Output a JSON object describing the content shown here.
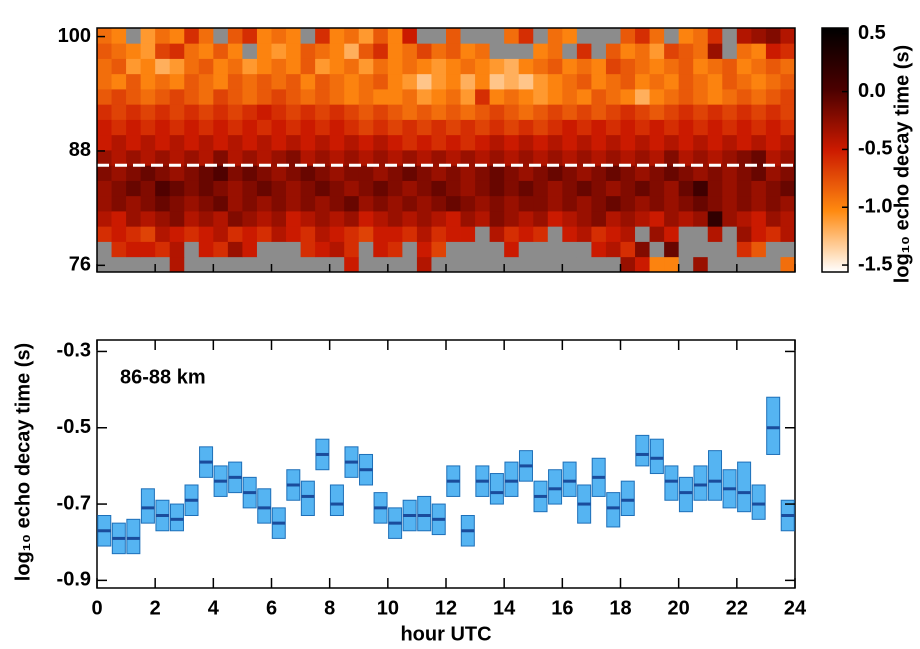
{
  "chart_data": [
    {
      "type": "heatmap",
      "x_edges": [
        0,
        0.5,
        1,
        1.5,
        2,
        2.5,
        3,
        3.5,
        4,
        4.5,
        5,
        5.5,
        6,
        6.5,
        7,
        7.5,
        8,
        8.5,
        9,
        9.5,
        10,
        10.5,
        11,
        11.5,
        12,
        12.5,
        13,
        13.5,
        14,
        14.5,
        15,
        15.5,
        16,
        16.5,
        17,
        17.5,
        18,
        18.5,
        19,
        19.5,
        20,
        20.5,
        21,
        21.5,
        22,
        22.5,
        23,
        23.5,
        24
      ],
      "y_edges": [
        75.3,
        76.9,
        78.5,
        80.1,
        81.7,
        83.3,
        84.9,
        86.5,
        88.1,
        89.7,
        91.3,
        92.9,
        94.5,
        96.1,
        97.7,
        99.3,
        100.9
      ],
      "xlim": [
        0,
        24
      ],
      "xticks": [
        0,
        2,
        4,
        6,
        8,
        10,
        12,
        14,
        16,
        18,
        20,
        22,
        24
      ],
      "ylim": [
        75.3,
        100.9
      ],
      "yticks": [
        76,
        88,
        100
      ],
      "hline": 86.5,
      "values": [
        [
          null,
          null,
          null,
          null,
          null,
          -0.4,
          null,
          null,
          null,
          null,
          null,
          null,
          null,
          null,
          null,
          null,
          null,
          -0.5,
          null,
          null,
          null,
          null,
          -0.4,
          null,
          null,
          null,
          null,
          null,
          null,
          null,
          null,
          null,
          null,
          null,
          null,
          null,
          -0.3,
          -0.5,
          -1.0,
          -1.0,
          null,
          -0.3,
          null,
          null,
          null,
          null,
          null,
          -0.9
        ],
        [
          null,
          -0.6,
          -0.5,
          -0.5,
          -0.6,
          -0.4,
          null,
          -0.5,
          -0.6,
          -0.3,
          -0.5,
          null,
          null,
          null,
          -0.6,
          -0.5,
          -0.4,
          -0.6,
          null,
          -0.5,
          -0.6,
          null,
          -0.5,
          -0.7,
          null,
          null,
          null,
          null,
          -0.5,
          null,
          null,
          null,
          null,
          null,
          -0.5,
          -0.4,
          -0.6,
          -0.2,
          null,
          -0.1,
          null,
          null,
          null,
          null,
          -0.6,
          -0.8,
          null,
          null
        ],
        [
          -0.6,
          -0.5,
          -0.6,
          -0.7,
          -0.4,
          -0.5,
          -0.6,
          -0.5,
          -0.4,
          -0.6,
          -0.5,
          -0.6,
          -0.4,
          -0.5,
          -0.6,
          -0.4,
          -0.5,
          -0.6,
          -0.7,
          -0.5,
          -0.5,
          -0.6,
          -0.4,
          -0.6,
          -0.5,
          -0.5,
          null,
          -0.4,
          -0.6,
          -0.5,
          -0.6,
          null,
          -0.5,
          -0.4,
          -0.6,
          -0.5,
          -0.4,
          null,
          -0.3,
          -0.5,
          null,
          null,
          -0.4,
          null,
          -0.3,
          -0.5,
          -0.6,
          -0.4
        ],
        [
          -0.4,
          -0.5,
          -0.3,
          -0.4,
          -0.3,
          -0.2,
          -0.4,
          -0.3,
          -0.4,
          -0.2,
          -0.3,
          -0.4,
          -0.3,
          -0.5,
          -0.4,
          -0.3,
          -0.4,
          -0.3,
          -0.5,
          -0.4,
          -0.3,
          -0.4,
          -0.3,
          -0.4,
          -0.5,
          -0.3,
          -0.4,
          -0.2,
          -0.3,
          -0.4,
          -0.3,
          -0.5,
          -0.4,
          -0.3,
          -0.2,
          -0.4,
          -0.3,
          -0.4,
          -0.5,
          -0.3,
          -0.4,
          -0.3,
          0.2,
          -0.3,
          -0.4,
          -0.5,
          -0.3,
          -0.4
        ],
        [
          -0.3,
          -0.2,
          -0.3,
          -0.2,
          -0.1,
          -0.2,
          -0.3,
          -0.2,
          -0.1,
          -0.3,
          -0.2,
          -0.3,
          -0.2,
          -0.3,
          -0.2,
          -0.3,
          -0.2,
          -0.1,
          -0.3,
          -0.2,
          -0.3,
          -0.2,
          -0.3,
          -0.2,
          -0.1,
          -0.2,
          -0.3,
          -0.2,
          -0.3,
          -0.2,
          -0.2,
          -0.3,
          -0.2,
          -0.3,
          -0.2,
          -0.1,
          -0.2,
          -0.3,
          -0.2,
          -0.3,
          -0.2,
          -0.1,
          -0.2,
          -0.3,
          -0.2,
          -0.3,
          -0.2,
          -0.3
        ],
        [
          -0.3,
          -0.2,
          -0.1,
          -0.2,
          0.0,
          -0.1,
          -0.2,
          -0.1,
          -0.2,
          -0.3,
          -0.2,
          -0.1,
          -0.2,
          -0.3,
          -0.2,
          -0.1,
          -0.2,
          -0.3,
          -0.2,
          -0.1,
          -0.2,
          -0.3,
          -0.2,
          -0.1,
          -0.2,
          -0.3,
          -0.2,
          -0.1,
          -0.2,
          -0.1,
          -0.2,
          -0.3,
          -0.2,
          -0.1,
          -0.2,
          -0.3,
          -0.2,
          -0.1,
          -0.2,
          -0.3,
          -0.1,
          0.1,
          -0.2,
          -0.3,
          -0.2,
          -0.3,
          -0.2,
          -0.1
        ],
        [
          -0.2,
          -0.3,
          -0.2,
          -0.1,
          -0.2,
          -0.3,
          -0.2,
          -0.1,
          0.0,
          -0.2,
          -0.1,
          -0.2,
          -0.3,
          -0.2,
          -0.1,
          -0.2,
          -0.3,
          -0.2,
          -0.2,
          -0.3,
          -0.2,
          -0.1,
          -0.2,
          -0.3,
          -0.2,
          -0.3,
          -0.2,
          -0.1,
          -0.2,
          -0.3,
          -0.2,
          -0.1,
          -0.2,
          -0.3,
          -0.2,
          -0.1,
          -0.2,
          -0.3,
          -0.2,
          -0.1,
          -0.2,
          -0.3,
          -0.2,
          -0.3,
          -0.2,
          -0.1,
          -0.3,
          -0.2
        ],
        [
          -0.3,
          -0.4,
          -0.3,
          -0.4,
          -0.3,
          -0.4,
          -0.3,
          -0.4,
          -0.2,
          -0.4,
          -0.3,
          -0.4,
          -0.3,
          -0.2,
          -0.4,
          -0.3,
          -0.4,
          -0.3,
          -0.4,
          -0.3,
          -0.4,
          -0.3,
          -0.4,
          -0.3,
          -0.4,
          -0.3,
          -0.4,
          -0.3,
          -0.4,
          -0.3,
          -0.4,
          -0.3,
          -0.4,
          -0.3,
          -0.4,
          -0.3,
          -0.4,
          -0.3,
          -0.4,
          -0.2,
          -0.4,
          -0.3,
          -0.4,
          -0.3,
          -0.2,
          -0.1,
          -0.4,
          -0.3
        ],
        [
          -0.5,
          -0.4,
          -0.5,
          -0.4,
          -0.5,
          -0.4,
          -0.5,
          -0.4,
          -0.5,
          -0.4,
          -0.5,
          -0.4,
          -0.5,
          -0.4,
          -0.5,
          -0.4,
          -0.5,
          -0.4,
          -0.5,
          -0.4,
          -0.5,
          -0.6,
          -0.5,
          -0.6,
          -0.5,
          -0.6,
          -0.5,
          -0.4,
          -0.5,
          -0.4,
          -0.5,
          -0.4,
          -0.5,
          -0.4,
          -0.5,
          -0.4,
          -0.5,
          -0.4,
          -0.5,
          -0.4,
          -0.5,
          -0.4,
          -0.5,
          -0.4,
          -0.5,
          -0.4,
          -0.5,
          -0.4
        ],
        [
          -0.5,
          -0.6,
          -0.5,
          -0.6,
          -0.5,
          -0.6,
          -0.5,
          -0.6,
          -0.5,
          -0.6,
          -0.5,
          -0.6,
          -0.5,
          -0.6,
          -0.5,
          -0.6,
          -0.5,
          -0.6,
          -0.7,
          -0.6,
          -0.7,
          -0.6,
          -0.7,
          -0.6,
          -0.7,
          -0.6,
          -0.7,
          -0.6,
          -0.7,
          -0.6,
          -0.7,
          -0.6,
          -0.5,
          -0.6,
          -0.5,
          -0.6,
          -0.5,
          -0.6,
          -0.5,
          -0.6,
          -0.5,
          -0.6,
          -0.5,
          -0.6,
          -0.5,
          -0.6,
          -0.5,
          -0.6
        ],
        [
          -0.6,
          -0.7,
          -0.6,
          -0.7,
          -0.6,
          -0.7,
          -0.6,
          -0.7,
          -0.6,
          -0.7,
          -0.6,
          -0.5,
          -0.6,
          -0.7,
          -0.6,
          -0.7,
          -0.6,
          -0.7,
          -0.8,
          -0.7,
          -0.8,
          -0.9,
          -0.8,
          -0.9,
          -0.8,
          -0.9,
          -0.8,
          -0.7,
          -0.8,
          -0.9,
          -0.8,
          -0.7,
          -0.8,
          -0.7,
          -0.8,
          -0.7,
          -0.6,
          -0.7,
          -0.8,
          -0.7,
          -0.6,
          -0.7,
          -0.6,
          -0.7,
          -0.6,
          -0.7,
          -0.6,
          -0.7
        ],
        [
          -0.8,
          -0.7,
          -0.8,
          -0.9,
          -0.8,
          -0.7,
          -0.8,
          -0.9,
          -0.7,
          -0.8,
          -0.9,
          -0.8,
          -0.7,
          -0.8,
          -0.9,
          -0.8,
          -0.9,
          -1.0,
          -0.9,
          -1.0,
          -1.0,
          -0.9,
          -1.1,
          -1.0,
          -0.9,
          -1.1,
          -0.6,
          -1.0,
          -0.9,
          -1.0,
          -1.1,
          -1.0,
          -0.9,
          -1.0,
          -0.8,
          -0.9,
          -1.0,
          -1.2,
          -1.0,
          -0.9,
          -0.8,
          -0.9,
          -1.0,
          -0.9,
          -0.8,
          -0.9,
          -0.8,
          -0.7
        ],
        [
          -0.9,
          -1.0,
          -0.8,
          -1.0,
          -0.9,
          -1.0,
          -0.8,
          -0.9,
          -1.0,
          -0.8,
          -0.9,
          -0.8,
          -0.9,
          -0.8,
          -1.0,
          -0.8,
          -0.9,
          -1.0,
          -0.9,
          -0.8,
          -1.0,
          -1.1,
          -1.3,
          -1.1,
          -1.0,
          -1.2,
          -1.0,
          -1.3,
          -1.2,
          -1.3,
          -1.1,
          -1.0,
          -0.9,
          -0.8,
          -1.0,
          -0.9,
          -0.8,
          -1.0,
          -0.9,
          -1.0,
          -0.8,
          -0.9,
          -1.0,
          -0.8,
          -0.9,
          -1.0,
          -0.9,
          -0.8
        ],
        [
          -0.9,
          -0.8,
          -1.1,
          -1.0,
          -1.2,
          -1.1,
          -0.9,
          -0.8,
          -1.0,
          -0.9,
          -1.1,
          -1.0,
          -0.9,
          -1.0,
          -0.8,
          -1.1,
          -1.0,
          -0.9,
          -1.1,
          -0.9,
          -1.0,
          -0.9,
          -1.0,
          -1.1,
          -1.0,
          -0.9,
          -1.0,
          -1.1,
          -1.2,
          -1.0,
          -0.9,
          -0.8,
          -1.0,
          -0.9,
          -1.0,
          -0.7,
          -0.8,
          -0.9,
          -1.0,
          -0.9,
          -0.8,
          -1.0,
          -0.9,
          -0.8,
          -1.0,
          -0.9,
          -0.8,
          -0.9
        ],
        [
          -0.8,
          -0.9,
          -1.0,
          -1.1,
          -0.7,
          -0.6,
          -0.9,
          -1.0,
          -0.8,
          -1.0,
          null,
          -1.0,
          -1.1,
          -1.0,
          -0.8,
          -0.9,
          -1.0,
          -1.2,
          -0.8,
          -0.6,
          -1.0,
          -0.9,
          -0.7,
          -0.9,
          -0.8,
          -1.0,
          -0.9,
          null,
          null,
          null,
          -1.0,
          -0.9,
          null,
          -0.6,
          null,
          -0.8,
          -1.0,
          -0.9,
          -1.1,
          -0.7,
          -0.8,
          -0.9,
          -0.3,
          null,
          -0.9,
          -1.0,
          -0.5,
          -0.6
        ],
        [
          -0.9,
          -1.0,
          null,
          -1.1,
          -0.9,
          -1.0,
          -0.6,
          -0.9,
          null,
          -0.8,
          -0.6,
          -1.0,
          -0.9,
          -1.0,
          null,
          -0.6,
          -1.0,
          -0.9,
          -1.1,
          -0.8,
          -1.0,
          -0.5,
          null,
          null,
          -0.8,
          null,
          null,
          null,
          -0.9,
          -0.6,
          null,
          -0.9,
          -1.0,
          null,
          null,
          null,
          -0.8,
          -0.6,
          -0.9,
          null,
          -1.0,
          -0.9,
          -0.6,
          null,
          -0.4,
          -0.3,
          -0.2,
          -0.4
        ]
      ],
      "colormap": [
        "#ffffff",
        "#ff8a10",
        "#cc1a00",
        "#4a0000",
        "#000000"
      ],
      "missing_color": "#8c8c8c",
      "clim": [
        -1.56,
        0.55
      ],
      "cticks": [
        -1.5,
        {
          "value": -1.0,
          "label": "-1.0"
        },
        -0.5,
        {
          "value": 0.0,
          "label": "0.0"
        },
        0.5
      ],
      "colorbar_label": "log₁₀ echo decay time (s)"
    },
    {
      "type": "box",
      "annotation": "86-88 km",
      "xlabel": "hour UTC",
      "ylabel": "log₁₀ echo decay time (s)",
      "xlim": [
        0,
        24
      ],
      "xticks": [
        0,
        2,
        4,
        6,
        8,
        10,
        12,
        14,
        16,
        18,
        20,
        22,
        24
      ],
      "ylim": [
        -0.92,
        -0.27
      ],
      "yticks": [
        -0.3,
        -0.5,
        -0.7,
        -0.9
      ],
      "color": "#55b4f2",
      "edge_color": "#1e6fb8",
      "median_color": "#1a4c9c",
      "x": [
        0.25,
        0.75,
        1.25,
        1.75,
        2.25,
        2.75,
        3.25,
        3.75,
        4.25,
        4.75,
        5.25,
        5.75,
        6.25,
        6.75,
        7.25,
        7.75,
        8.25,
        8.75,
        9.25,
        9.75,
        10.25,
        10.75,
        11.25,
        11.75,
        12.25,
        12.75,
        13.25,
        13.75,
        14.25,
        14.75,
        15.25,
        15.75,
        16.25,
        16.75,
        17.25,
        17.75,
        18.25,
        18.75,
        19.25,
        19.75,
        20.25,
        20.75,
        21.25,
        21.75,
        22.25,
        22.75,
        23.25,
        23.75
      ],
      "values": [
        -0.77,
        -0.79,
        -0.79,
        -0.71,
        -0.73,
        -0.74,
        -0.69,
        -0.59,
        -0.64,
        -0.63,
        -0.67,
        -0.71,
        -0.75,
        -0.65,
        -0.68,
        -0.57,
        -0.7,
        -0.59,
        -0.61,
        -0.71,
        -0.75,
        -0.73,
        -0.73,
        -0.74,
        -0.64,
        -0.77,
        -0.64,
        -0.67,
        -0.64,
        -0.6,
        -0.68,
        -0.66,
        -0.64,
        -0.7,
        -0.63,
        -0.71,
        -0.69,
        -0.57,
        -0.58,
        -0.64,
        -0.67,
        -0.65,
        -0.64,
        -0.66,
        -0.67,
        -0.7,
        -0.5,
        -0.73
      ],
      "low": [
        -0.81,
        -0.83,
        -0.83,
        -0.75,
        -0.77,
        -0.77,
        -0.73,
        -0.63,
        -0.68,
        -0.67,
        -0.71,
        -0.75,
        -0.79,
        -0.69,
        -0.73,
        -0.61,
        -0.73,
        -0.63,
        -0.65,
        -0.75,
        -0.79,
        -0.77,
        -0.77,
        -0.78,
        -0.68,
        -0.81,
        -0.68,
        -0.7,
        -0.68,
        -0.64,
        -0.72,
        -0.7,
        -0.68,
        -0.75,
        -0.68,
        -0.76,
        -0.73,
        -0.6,
        -0.62,
        -0.69,
        -0.72,
        -0.69,
        -0.69,
        -0.71,
        -0.72,
        -0.74,
        -0.57,
        -0.77
      ],
      "high": [
        -0.73,
        -0.75,
        -0.74,
        -0.66,
        -0.69,
        -0.7,
        -0.65,
        -0.55,
        -0.6,
        -0.59,
        -0.63,
        -0.66,
        -0.71,
        -0.61,
        -0.64,
        -0.53,
        -0.65,
        -0.55,
        -0.57,
        -0.67,
        -0.71,
        -0.69,
        -0.68,
        -0.7,
        -0.6,
        -0.73,
        -0.6,
        -0.62,
        -0.59,
        -0.56,
        -0.64,
        -0.61,
        -0.59,
        -0.65,
        -0.58,
        -0.67,
        -0.64,
        -0.52,
        -0.53,
        -0.6,
        -0.63,
        -0.6,
        -0.56,
        -0.61,
        -0.59,
        -0.65,
        -0.42,
        -0.69
      ]
    }
  ]
}
